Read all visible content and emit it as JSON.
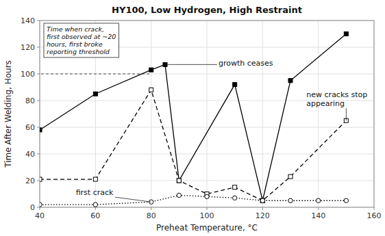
{
  "chart_data": {
    "type": "line",
    "title": "HY100, Low Hydrogen, High Restraint",
    "x_label": "Preheat Temperature, °C",
    "y_label": "Time After Welding, Hours",
    "xlim": [
      40,
      160
    ],
    "ylim": [
      0,
      140
    ],
    "xticks": [
      40,
      60,
      80,
      100,
      120,
      140,
      160
    ],
    "yticks": [
      0,
      20,
      40,
      60,
      80,
      100,
      120,
      140
    ],
    "grid": true,
    "series": [
      {
        "x": [
          40,
          60,
          80,
          85,
          90,
          110,
          120,
          130,
          150
        ],
        "values": [
          58,
          85,
          103,
          107,
          20,
          92,
          5,
          95,
          130
        ],
        "color": "black",
        "marker": "square",
        "line_style": "solid"
      },
      {
        "x": [
          40,
          60,
          80,
          90,
          100,
          110,
          120,
          130,
          150
        ],
        "values": [
          21,
          21,
          88,
          20,
          10,
          15,
          5,
          23,
          65
        ],
        "color": "black",
        "marker": "open-square",
        "line_style": "dashed"
      },
      {
        "x": [
          40,
          60,
          80,
          90,
          100,
          110,
          120,
          130,
          140,
          150
        ],
        "values": [
          2,
          2,
          4,
          9,
          8,
          7,
          5,
          5,
          5,
          5
        ],
        "color": "black",
        "marker": "open-circle",
        "line_style": "dotted"
      }
    ],
    "annotations": [
      {
        "text": "growth ceases",
        "x": 85,
        "y": 107
      },
      {
        "text": "new cracks stop\nappearing",
        "x": 150,
        "y": 65
      },
      {
        "text": "first crack",
        "x": 80,
        "y": 4
      }
    ],
    "note": {
      "text": "Time when crack,\nfirst observed at ~20\nhours, first broke\nreporting threshold",
      "x": 80,
      "y": 100
    }
  }
}
